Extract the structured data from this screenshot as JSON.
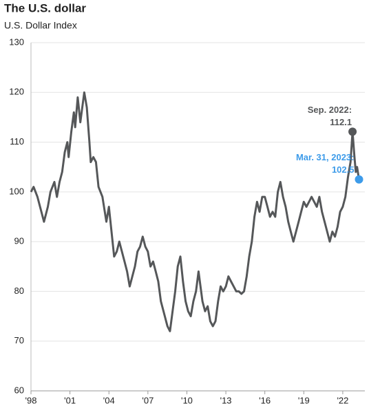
{
  "chart_data": {
    "type": "line",
    "title": "The U.S. dollar",
    "subtitle": "U.S. Dollar Index",
    "color": "#555759",
    "grid": true,
    "x": [
      1998.0,
      1998.2,
      1998.5,
      1998.8,
      1999.0,
      1999.3,
      1999.5,
      1999.8,
      2000.0,
      2000.2,
      2000.4,
      2000.6,
      2000.8,
      2000.9,
      2001.1,
      2001.3,
      2001.4,
      2001.6,
      2001.8,
      2002.0,
      2002.1,
      2002.3,
      2002.5,
      2002.6,
      2002.8,
      2003.0,
      2003.2,
      2003.5,
      2003.8,
      2004.0,
      2004.2,
      2004.4,
      2004.6,
      2004.8,
      2005.0,
      2005.2,
      2005.4,
      2005.6,
      2005.8,
      2006.0,
      2006.2,
      2006.4,
      2006.6,
      2006.8,
      2007.0,
      2007.2,
      2007.4,
      2007.6,
      2007.8,
      2008.0,
      2008.2,
      2008.5,
      2008.7,
      2008.9,
      2009.1,
      2009.3,
      2009.5,
      2009.7,
      2009.9,
      2010.1,
      2010.3,
      2010.5,
      2010.7,
      2010.9,
      2011.0,
      2011.2,
      2011.4,
      2011.6,
      2011.8,
      2012.0,
      2012.2,
      2012.4,
      2012.6,
      2012.8,
      2013.0,
      2013.2,
      2013.4,
      2013.6,
      2013.8,
      2014.0,
      2014.2,
      2014.4,
      2014.6,
      2014.8,
      2015.0,
      2015.2,
      2015.4,
      2015.6,
      2015.8,
      2016.0,
      2016.2,
      2016.4,
      2016.6,
      2016.8,
      2017.0,
      2017.2,
      2017.4,
      2017.6,
      2017.8,
      2018.0,
      2018.2,
      2018.4,
      2018.6,
      2018.8,
      2019.0,
      2019.2,
      2019.4,
      2019.6,
      2019.8,
      2020.0,
      2020.2,
      2020.4,
      2020.6,
      2020.8,
      2021.0,
      2021.2,
      2021.4,
      2021.6,
      2021.8,
      2022.0,
      2022.2,
      2022.4,
      2022.6,
      2022.75,
      2022.9,
      2023.0,
      2023.1,
      2023.25
    ],
    "values": [
      100,
      101,
      99,
      96,
      94,
      97,
      100,
      102,
      99,
      102,
      104,
      108,
      110,
      107,
      112,
      116,
      113,
      119,
      114,
      118,
      120,
      117,
      110,
      106,
      107,
      106,
      101,
      99,
      94,
      97,
      92,
      87,
      88,
      90,
      88,
      86,
      84,
      81,
      83,
      85,
      88,
      89,
      91,
      89,
      88,
      85,
      86,
      84,
      82,
      78,
      76,
      73,
      72,
      76,
      80,
      85,
      87,
      82,
      78,
      76,
      75,
      78,
      80,
      84,
      82,
      78,
      76,
      77,
      74,
      73,
      74,
      78,
      81,
      80,
      81,
      83,
      82,
      81,
      80,
      80,
      79.5,
      80,
      83,
      87,
      90,
      95,
      98,
      96,
      99,
      99,
      97,
      95,
      96,
      95,
      100,
      102,
      99,
      97,
      94,
      92,
      90,
      92,
      94,
      96,
      98,
      97,
      98,
      99,
      98,
      97,
      99,
      96,
      94,
      92,
      90,
      92,
      91,
      93,
      96,
      97,
      99,
      103,
      106,
      112.1,
      107,
      104,
      105,
      102.5
    ],
    "xlim": [
      1998,
      2023.7
    ],
    "ylim": [
      60,
      130
    ],
    "yticks": [
      60,
      70,
      80,
      90,
      100,
      110,
      120,
      130
    ],
    "xticks": [
      {
        "value": 1998,
        "label": "'98"
      },
      {
        "value": 2001,
        "label": "'01"
      },
      {
        "value": 2004,
        "label": "'04"
      },
      {
        "value": 2007,
        "label": "'07"
      },
      {
        "value": 2010,
        "label": "'10"
      },
      {
        "value": 2013,
        "label": "'13"
      },
      {
        "value": 2016,
        "label": "'16"
      },
      {
        "value": 2019,
        "label": "'19"
      },
      {
        "value": 2022,
        "label": "'22"
      }
    ],
    "annotations": [
      {
        "label": "Sep. 2022:",
        "value_label": "112.1",
        "x": 2022.75,
        "y": 112.1,
        "color": "#555759"
      },
      {
        "label": "Mar. 31, 2023:",
        "value_label": "102.5",
        "x": 2023.25,
        "y": 102.5,
        "color": "#3d9be9"
      }
    ]
  }
}
